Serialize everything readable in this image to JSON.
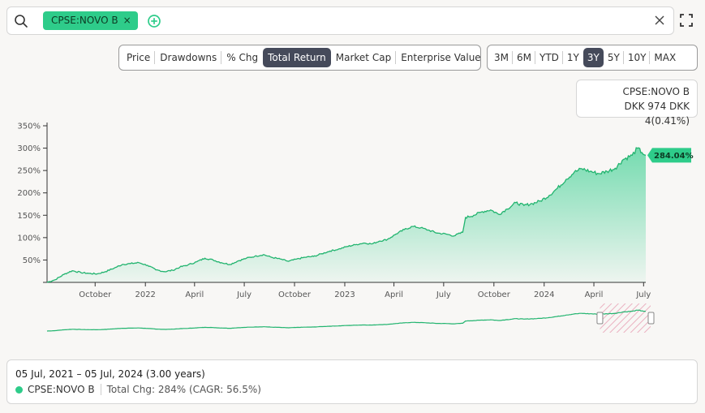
{
  "search": {
    "ticker_chip": "CPSE:NOVO B",
    "chip_close": "×"
  },
  "metric_tabs": [
    {
      "label": "Price",
      "active": false
    },
    {
      "label": "Drawdowns",
      "active": false
    },
    {
      "label": "% Chg",
      "active": false
    },
    {
      "label": "Total Return",
      "active": true
    },
    {
      "label": "Market Cap",
      "active": false
    },
    {
      "label": "Enterprise Value",
      "active": false
    }
  ],
  "range_tabs": [
    {
      "label": "3M",
      "active": false
    },
    {
      "label": "6M",
      "active": false
    },
    {
      "label": "YTD",
      "active": false
    },
    {
      "label": "1Y",
      "active": false
    },
    {
      "label": "3Y",
      "active": true
    },
    {
      "label": "5Y",
      "active": false
    },
    {
      "label": "10Y",
      "active": false
    },
    {
      "label": "MAX",
      "active": false
    }
  ],
  "tooltip": {
    "ticker": "CPSE:NOVO B",
    "quote": "DKK 974  DKK 4(0.41%)"
  },
  "colors": {
    "series": "#2ecc8a",
    "series_line": "#22b46f",
    "active_tab": "#454a5a",
    "nav_highlight": "#e8a0b4"
  },
  "chart_data": {
    "type": "area",
    "title": "",
    "xlabel": "",
    "ylabel": "",
    "y_unit": "%",
    "ylim": [
      0,
      350
    ],
    "y_ticks": [
      0,
      50,
      100,
      150,
      200,
      250,
      300,
      350
    ],
    "y_tick_labels": [
      "",
      "50%",
      "100%",
      "150%",
      "200%",
      "250%",
      "300%",
      "350%"
    ],
    "xlim": [
      "2021-07-05",
      "2024-07-05"
    ],
    "x_ticks": [
      {
        "date": "2021-10-01",
        "label": "October"
      },
      {
        "date": "2022-01-01",
        "label": "2022"
      },
      {
        "date": "2022-04-01",
        "label": "April"
      },
      {
        "date": "2022-07-01",
        "label": "July"
      },
      {
        "date": "2022-10-01",
        "label": "October"
      },
      {
        "date": "2023-01-01",
        "label": "2023"
      },
      {
        "date": "2023-04-01",
        "label": "April"
      },
      {
        "date": "2023-07-01",
        "label": "July"
      },
      {
        "date": "2023-10-01",
        "label": "October"
      },
      {
        "date": "2024-01-01",
        "label": "2024"
      },
      {
        "date": "2024-04-01",
        "label": "April"
      },
      {
        "date": "2024-07-01",
        "label": "July"
      }
    ],
    "series": [
      {
        "name": "CPSE:NOVO B",
        "last_label": "284.04%",
        "points": [
          [
            "2021-07-05",
            0
          ],
          [
            "2021-07-20",
            6
          ],
          [
            "2021-08-05",
            18
          ],
          [
            "2021-08-20",
            26
          ],
          [
            "2021-09-05",
            22
          ],
          [
            "2021-09-20",
            20
          ],
          [
            "2021-10-05",
            19
          ],
          [
            "2021-10-20",
            24
          ],
          [
            "2021-11-05",
            32
          ],
          [
            "2021-11-20",
            40
          ],
          [
            "2021-12-05",
            42
          ],
          [
            "2021-12-20",
            44
          ],
          [
            "2022-01-05",
            38
          ],
          [
            "2022-01-20",
            28
          ],
          [
            "2022-02-05",
            24
          ],
          [
            "2022-02-20",
            27
          ],
          [
            "2022-03-05",
            34
          ],
          [
            "2022-03-20",
            39
          ],
          [
            "2022-04-05",
            46
          ],
          [
            "2022-04-20",
            54
          ],
          [
            "2022-05-05",
            50
          ],
          [
            "2022-05-20",
            44
          ],
          [
            "2022-06-05",
            40
          ],
          [
            "2022-06-20",
            48
          ],
          [
            "2022-07-05",
            54
          ],
          [
            "2022-07-20",
            58
          ],
          [
            "2022-08-05",
            62
          ],
          [
            "2022-08-20",
            56
          ],
          [
            "2022-09-05",
            52
          ],
          [
            "2022-09-20",
            47
          ],
          [
            "2022-10-05",
            52
          ],
          [
            "2022-10-20",
            56
          ],
          [
            "2022-11-05",
            58
          ],
          [
            "2022-11-20",
            64
          ],
          [
            "2022-12-05",
            70
          ],
          [
            "2022-12-20",
            74
          ],
          [
            "2023-01-05",
            80
          ],
          [
            "2023-01-20",
            84
          ],
          [
            "2023-02-05",
            88
          ],
          [
            "2023-02-20",
            86
          ],
          [
            "2023-03-05",
            92
          ],
          [
            "2023-03-20",
            96
          ],
          [
            "2023-04-05",
            108
          ],
          [
            "2023-04-20",
            118
          ],
          [
            "2023-05-05",
            125
          ],
          [
            "2023-05-20",
            122
          ],
          [
            "2023-06-05",
            116
          ],
          [
            "2023-06-20",
            110
          ],
          [
            "2023-07-05",
            108
          ],
          [
            "2023-07-20",
            104
          ],
          [
            "2023-08-05",
            112
          ],
          [
            "2023-08-10",
            145
          ],
          [
            "2023-08-25",
            150
          ],
          [
            "2023-09-10",
            158
          ],
          [
            "2023-09-25",
            162
          ],
          [
            "2023-10-10",
            152
          ],
          [
            "2023-10-25",
            164
          ],
          [
            "2023-11-10",
            178
          ],
          [
            "2023-11-25",
            172
          ],
          [
            "2023-12-10",
            176
          ],
          [
            "2023-12-25",
            182
          ],
          [
            "2024-01-10",
            194
          ],
          [
            "2024-01-25",
            210
          ],
          [
            "2024-02-10",
            230
          ],
          [
            "2024-02-25",
            246
          ],
          [
            "2024-03-10",
            254
          ],
          [
            "2024-03-25",
            248
          ],
          [
            "2024-04-10",
            243
          ],
          [
            "2024-04-25",
            248
          ],
          [
            "2024-05-10",
            255
          ],
          [
            "2024-05-25",
            275
          ],
          [
            "2024-06-10",
            284
          ],
          [
            "2024-06-20",
            300
          ],
          [
            "2024-06-28",
            290
          ],
          [
            "2024-07-05",
            284.04
          ]
        ]
      }
    ],
    "navigator": {
      "selection": [
        "2024-04-12",
        "2024-07-05"
      ]
    }
  },
  "summary": {
    "date_range": "05 Jul, 2021 – 05 Jul, 2024 (3.00 years)",
    "ticker": "CPSE:NOVO B",
    "total_change": "Total Chg: 284% (CAGR: 56.5%)"
  }
}
